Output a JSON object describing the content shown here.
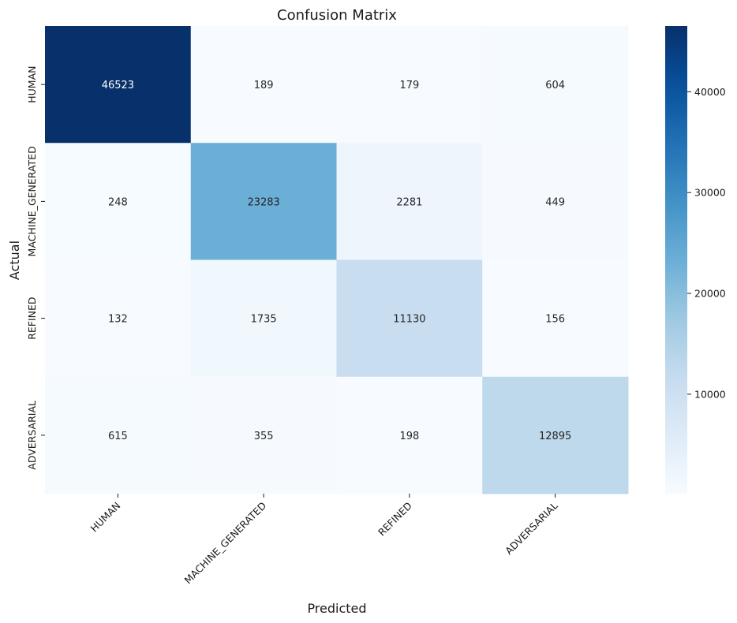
{
  "chart_data": {
    "type": "heatmap",
    "title": "Confusion Matrix",
    "xlabel": "Predicted",
    "ylabel": "Actual",
    "x_categories": [
      "HUMAN",
      "MACHINE_GENERATED",
      "REFINED",
      "ADVERSARIAL"
    ],
    "y_categories": [
      "HUMAN",
      "MACHINE_GENERATED",
      "REFINED",
      "ADVERSARIAL"
    ],
    "values": [
      [
        46523,
        189,
        179,
        604
      ],
      [
        248,
        23283,
        2281,
        449
      ],
      [
        132,
        1735,
        11130,
        156
      ],
      [
        615,
        355,
        198,
        12895
      ]
    ],
    "colormap": "Blues",
    "colorbar": {
      "range": [
        132,
        46523
      ],
      "ticks": [
        10000,
        20000,
        30000,
        40000
      ]
    }
  }
}
